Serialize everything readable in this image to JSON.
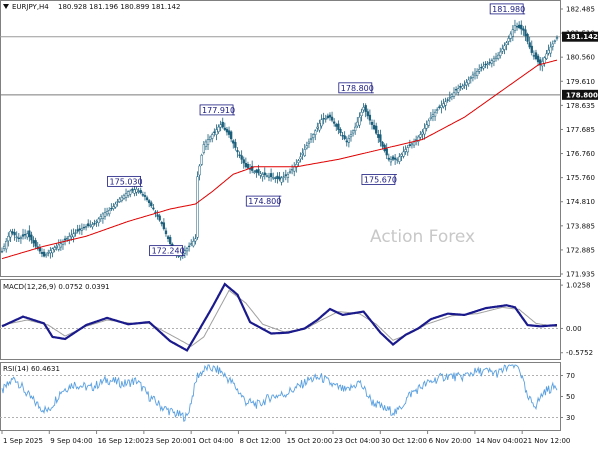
{
  "colors": {
    "candle": "#1a5e7a",
    "ma": "#e00000",
    "macd_line": "#1a1a8c",
    "macd_signal": "#a0a0a0",
    "rsi": "#5aa0e0",
    "label_box": "#1a1a80",
    "price_tag": "#111111",
    "grid": "#c0c0c0",
    "axis": "#808080",
    "watermark": "#c8c8c8"
  },
  "header": {
    "symbol": "EURJPY,H4",
    "ohlc": "180.928 181.196 180.899 181.142",
    "macd": "MACD(12,26,9) 0.0752 0.0391",
    "rsi": "RSI(14) 60.4631"
  },
  "watermark": "Action Forex",
  "icons": {
    "collapse": "triangle-down-icon"
  },
  "chart_data": [
    {
      "type": "line",
      "subtype": "candlestick",
      "title": "EURJPY,H4",
      "subtitle": "180.928 181.196 180.899 181.142",
      "ylim": [
        171.5,
        182.5
      ],
      "y_ticks": [
        "182.485",
        "181.510",
        "180.560",
        "179.610",
        "178.635",
        "177.685",
        "176.760",
        "175.760",
        "174.810",
        "173.885",
        "172.885",
        "171.935"
      ],
      "x_ticks": [
        "1 Sep 2025",
        "9 Sep 04:00",
        "16 Sep 12:00",
        "23 Sep 20:00",
        "1 Oct 04:00",
        "8 Oct 12:00",
        "15 Oct 20:00",
        "23 Oct 04:00",
        "30 Oct 12:00",
        "6 Nov 20:00",
        "14 Nov 04:00",
        "21 Nov 12:00"
      ],
      "series": [
        {
          "points": [
            [
              0,
              172.5
            ],
            [
              4,
              173.3
            ],
            [
              8,
              173.0
            ],
            [
              12,
              173.2
            ],
            [
              16,
              172.7
            ],
            [
              20,
              172.3
            ],
            [
              24,
              172.6
            ],
            [
              28,
              172.8
            ],
            [
              32,
              173.1
            ],
            [
              36,
              173.3
            ],
            [
              40,
              173.5
            ],
            [
              44,
              173.6
            ],
            [
              48,
              174.0
            ],
            [
              52,
              174.2
            ],
            [
              56,
              174.6
            ],
            [
              60,
              174.9
            ],
            [
              64,
              175.0
            ],
            [
              68,
              174.7
            ],
            [
              72,
              174.2
            ],
            [
              76,
              173.6
            ],
            [
              80,
              172.8
            ],
            [
              84,
              172.3
            ],
            [
              88,
              172.6
            ],
            [
              92,
              173.0
            ],
            [
              93,
              175.5
            ],
            [
              96,
              176.8
            ],
            [
              100,
              177.2
            ],
            [
              104,
              177.6
            ],
            [
              108,
              177.2
            ],
            [
              112,
              176.5
            ],
            [
              116,
              175.9
            ],
            [
              120,
              175.7
            ],
            [
              124,
              175.6
            ],
            [
              128,
              175.5
            ],
            [
              132,
              175.4
            ],
            [
              136,
              175.6
            ],
            [
              140,
              176.0
            ],
            [
              144,
              176.6
            ],
            [
              148,
              177.2
            ],
            [
              152,
              177.8
            ],
            [
              156,
              177.9
            ],
            [
              160,
              177.4
            ],
            [
              164,
              176.9
            ],
            [
              168,
              177.5
            ],
            [
              172,
              178.3
            ],
            [
              176,
              177.6
            ],
            [
              180,
              176.9
            ],
            [
              184,
              176.2
            ],
            [
              188,
              176.2
            ],
            [
              192,
              176.6
            ],
            [
              196,
              176.9
            ],
            [
              200,
              177.3
            ],
            [
              204,
              177.9
            ],
            [
              208,
              178.3
            ],
            [
              212,
              178.6
            ],
            [
              216,
              179.0
            ],
            [
              220,
              179.2
            ],
            [
              224,
              179.6
            ],
            [
              228,
              179.9
            ],
            [
              232,
              180.1
            ],
            [
              236,
              180.4
            ],
            [
              240,
              180.9
            ],
            [
              244,
              181.6
            ],
            [
              248,
              181.4
            ],
            [
              252,
              180.5
            ],
            [
              256,
              180.0
            ],
            [
              260,
              180.6
            ],
            [
              264,
              181.1
            ]
          ]
        },
        {
          "name": "MA",
          "points": [
            [
              0,
              172.2
            ],
            [
              20,
              172.7
            ],
            [
              40,
              173.1
            ],
            [
              60,
              173.7
            ],
            [
              80,
              174.2
            ],
            [
              92,
              174.4
            ],
            [
              100,
              174.9
            ],
            [
              110,
              175.6
            ],
            [
              120,
              175.9
            ],
            [
              140,
              175.9
            ],
            [
              160,
              176.2
            ],
            [
              180,
              176.6
            ],
            [
              200,
              177.0
            ],
            [
              220,
              177.9
            ],
            [
              240,
              179.1
            ],
            [
              255,
              180.0
            ],
            [
              264,
              180.2
            ]
          ]
        }
      ],
      "annotations": [
        {
          "text": "175.030",
          "x": 64,
          "y": 175.03
        },
        {
          "text": "172.240",
          "x": 84,
          "y": 172.24
        },
        {
          "text": "177.910",
          "x": 108,
          "y": 177.91
        },
        {
          "text": "174.800",
          "x": 130,
          "y": 174.8
        },
        {
          "text": "178.800",
          "x": 174,
          "y": 178.8
        },
        {
          "text": "175.670",
          "x": 185,
          "y": 175.67
        },
        {
          "text": "181.980",
          "x": 246,
          "y": 181.98
        }
      ],
      "price_tags": [
        "181.142",
        "178.800"
      ],
      "hline": 178.8,
      "current_price": 181.142
    },
    {
      "type": "line",
      "title": "MACD(12,26,9) 0.0752 0.0391",
      "ylim": [
        -0.7,
        1.1
      ],
      "y_ticks": [
        "1.0258",
        "0.00",
        "-0.5752"
      ],
      "series": [
        {
          "points": [
            [
              0,
              0.05
            ],
            [
              10,
              0.28
            ],
            [
              20,
              0.12
            ],
            [
              24,
              -0.2
            ],
            [
              30,
              -0.25
            ],
            [
              40,
              0.08
            ],
            [
              50,
              0.25
            ],
            [
              60,
              0.1
            ],
            [
              70,
              0.15
            ],
            [
              80,
              -0.3
            ],
            [
              88,
              -0.52
            ],
            [
              93,
              -0.1
            ],
            [
              100,
              0.5
            ],
            [
              106,
              1.05
            ],
            [
              112,
              0.8
            ],
            [
              118,
              0.15
            ],
            [
              128,
              -0.12
            ],
            [
              136,
              -0.1
            ],
            [
              144,
              0.0
            ],
            [
              150,
              0.2
            ],
            [
              156,
              0.46
            ],
            [
              162,
              0.32
            ],
            [
              172,
              0.4
            ],
            [
              180,
              -0.1
            ],
            [
              186,
              -0.38
            ],
            [
              192,
              -0.15
            ],
            [
              198,
              0.0
            ],
            [
              204,
              0.22
            ],
            [
              212,
              0.35
            ],
            [
              220,
              0.32
            ],
            [
              230,
              0.48
            ],
            [
              240,
              0.55
            ],
            [
              244,
              0.5
            ],
            [
              250,
              0.08
            ],
            [
              256,
              0.05
            ],
            [
              264,
              0.08
            ]
          ]
        },
        {
          "points": [
            [
              0,
              0.08
            ],
            [
              12,
              0.2
            ],
            [
              22,
              0.08
            ],
            [
              30,
              -0.18
            ],
            [
              40,
              0.05
            ],
            [
              50,
              0.2
            ],
            [
              62,
              0.12
            ],
            [
              70,
              0.12
            ],
            [
              82,
              -0.2
            ],
            [
              90,
              -0.42
            ],
            [
              96,
              -0.2
            ],
            [
              102,
              0.35
            ],
            [
              108,
              0.9
            ],
            [
              116,
              0.6
            ],
            [
              124,
              0.1
            ],
            [
              134,
              -0.08
            ],
            [
              144,
              -0.02
            ],
            [
              152,
              0.2
            ],
            [
              160,
              0.4
            ],
            [
              170,
              0.35
            ],
            [
              178,
              0.1
            ],
            [
              186,
              -0.28
            ],
            [
              194,
              -0.12
            ],
            [
              202,
              0.1
            ],
            [
              214,
              0.3
            ],
            [
              226,
              0.35
            ],
            [
              238,
              0.5
            ],
            [
              246,
              0.45
            ],
            [
              254,
              0.12
            ],
            [
              264,
              0.04
            ]
          ]
        }
      ]
    },
    {
      "type": "line",
      "title": "RSI(14) 60.4631",
      "ylim": [
        20,
        80
      ],
      "y_ticks": [
        "70",
        "50",
        "30"
      ],
      "series": [
        {
          "points": [
            [
              0,
              55
            ],
            [
              6,
              68
            ],
            [
              12,
              52
            ],
            [
              18,
              40
            ],
            [
              22,
              36
            ],
            [
              28,
              55
            ],
            [
              34,
              62
            ],
            [
              42,
              58
            ],
            [
              50,
              66
            ],
            [
              58,
              62
            ],
            [
              64,
              65
            ],
            [
              70,
              50
            ],
            [
              76,
              40
            ],
            [
              82,
              34
            ],
            [
              88,
              30
            ],
            [
              93,
              70
            ],
            [
              98,
              78
            ],
            [
              104,
              74
            ],
            [
              110,
              62
            ],
            [
              116,
              45
            ],
            [
              122,
              42
            ],
            [
              128,
              50
            ],
            [
              134,
              52
            ],
            [
              140,
              58
            ],
            [
              146,
              66
            ],
            [
              152,
              68
            ],
            [
              158,
              60
            ],
            [
              164,
              55
            ],
            [
              170,
              64
            ],
            [
              176,
              45
            ],
            [
              182,
              38
            ],
            [
              188,
              35
            ],
            [
              194,
              52
            ],
            [
              200,
              60
            ],
            [
              206,
              66
            ],
            [
              212,
              70
            ],
            [
              218,
              68
            ],
            [
              224,
              73
            ],
            [
              230,
              74
            ],
            [
              236,
              72
            ],
            [
              242,
              80
            ],
            [
              246,
              78
            ],
            [
              250,
              48
            ],
            [
              254,
              42
            ],
            [
              258,
              55
            ],
            [
              264,
              60
            ]
          ]
        }
      ]
    }
  ]
}
